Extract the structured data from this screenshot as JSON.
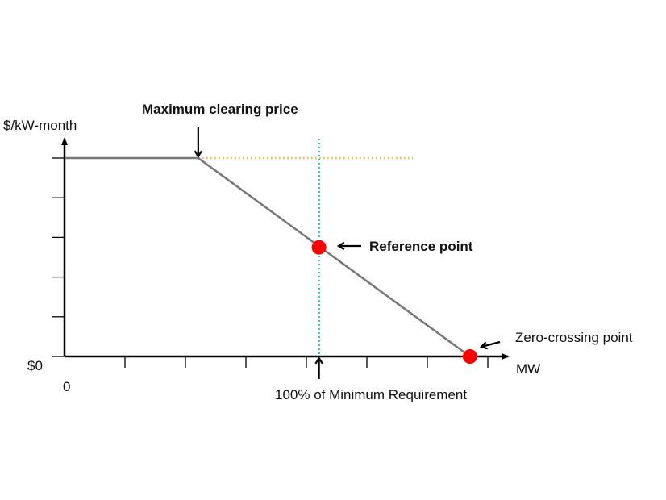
{
  "chart_data": {
    "type": "line",
    "ylabel": "$/kW-month",
    "xlabel": "MW",
    "y_origin_label": "$0",
    "x_origin_label": "0",
    "x_ticks": 7,
    "y_ticks": 6,
    "series": [
      {
        "points": [
          [
            0,
            1
          ],
          [
            0.31,
            1
          ],
          [
            0.94,
            0
          ]
        ]
      }
    ],
    "max_price_level": 1,
    "min_requirement_x": 0.59,
    "reference_point": [
      0.59,
      0.55
    ],
    "zero_crossing_point": [
      0.94,
      0
    ],
    "annotations": {
      "max_clearing_price": "Maximum clearing price",
      "reference_point": "Reference point",
      "zero_crossing_point": "Zero-crossing point",
      "min_requirement": "100% of Minimum Requirement"
    },
    "colors": {
      "curve": "#777777",
      "max_price_line": "#f0c060",
      "requirement_line": "#33bbcc",
      "points": "#ff0000",
      "axes": "#000000"
    }
  }
}
